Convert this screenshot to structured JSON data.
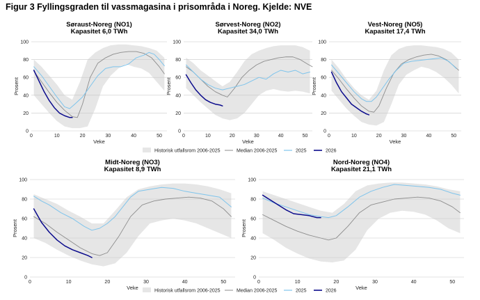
{
  "figure_title": "Figur 3 Fyllingsgraden til vassmagasina i prisområda i Noreg. Kjelde: NVE",
  "colors": {
    "band": "#e6e6e6",
    "median": "#8c8c8c",
    "y2025": "#7ec4ec",
    "y2026": "#0a0a8c",
    "grid": "#c8c8c8"
  },
  "legend": {
    "band": "Historisk utfallsrom 2006-2025",
    "median": "Median 2006-2025",
    "y2025": "2025",
    "y2026": "2026"
  },
  "chart_data": [
    {
      "type": "line",
      "title": "Søraust-Noreg (NO1)",
      "subtitle": "Kapasitet 6,0 TWh",
      "xlabel": "Veke",
      "ylabel": "Prosent",
      "xlim": [
        0,
        53
      ],
      "ylim": [
        0,
        100
      ],
      "xticks": [
        0,
        10,
        20,
        30,
        40,
        50
      ],
      "yticks": [
        0,
        20,
        40,
        60,
        80,
        100
      ],
      "grid": true,
      "band_weeks": [
        1,
        4,
        7,
        10,
        13,
        16,
        19,
        22,
        25,
        28,
        31,
        34,
        37,
        40,
        43,
        46,
        49,
        52
      ],
      "band_min": [
        40,
        30,
        20,
        11,
        5,
        3,
        3,
        5,
        25,
        50,
        62,
        70,
        75,
        72,
        70,
        65,
        55,
        45
      ],
      "band_max": [
        80,
        72,
        62,
        52,
        40,
        35,
        55,
        80,
        88,
        93,
        96,
        97,
        97,
        96,
        95,
        93,
        90,
        82
      ],
      "median": {
        "weeks": [
          1,
          4,
          7,
          10,
          13,
          16,
          18,
          20,
          23,
          26,
          29,
          32,
          35,
          38,
          41,
          44,
          47,
          50,
          52
        ],
        "values": [
          67,
          55,
          43,
          32,
          23,
          16,
          15,
          30,
          60,
          76,
          82,
          86,
          88,
          89,
          89,
          87,
          82,
          72,
          64
        ]
      },
      "series": [
        {
          "name": "2025",
          "weeks": [
            1,
            4,
            7,
            10,
            13,
            15,
            17,
            20,
            23,
            26,
            29,
            32,
            35,
            38,
            41,
            44,
            46,
            48,
            50,
            52
          ],
          "values": [
            72,
            62,
            50,
            38,
            27,
            25,
            30,
            38,
            50,
            62,
            70,
            72,
            72,
            75,
            82,
            85,
            88,
            86,
            80,
            73
          ]
        },
        {
          "name": "2026",
          "weeks": [
            1,
            3,
            5,
            7,
            9,
            11,
            13,
            15,
            16
          ],
          "values": [
            68,
            56,
            44,
            34,
            26,
            20,
            17,
            15,
            15
          ]
        }
      ]
    },
    {
      "type": "line",
      "title": "Sørvest-Noreg (NO2)",
      "subtitle": "Kapasitet 34,0 TWh",
      "xlabel": "Veke",
      "ylabel": "Prosent",
      "xlim": [
        0,
        53
      ],
      "ylim": [
        0,
        100
      ],
      "xticks": [
        0,
        10,
        20,
        30,
        40,
        50
      ],
      "yticks": [
        0,
        20,
        40,
        60,
        80,
        100
      ],
      "grid": true,
      "band_weeks": [
        1,
        4,
        7,
        10,
        13,
        16,
        19,
        22,
        25,
        28,
        31,
        34,
        37,
        40,
        43,
        46,
        49,
        52
      ],
      "band_min": [
        48,
        40,
        32,
        25,
        18,
        14,
        12,
        14,
        20,
        30,
        40,
        45,
        47,
        45,
        44,
        45,
        44,
        42
      ],
      "band_max": [
        82,
        76,
        68,
        62,
        56,
        50,
        55,
        66,
        78,
        86,
        90,
        93,
        95,
        96,
        96,
        96,
        94,
        90
      ],
      "median": {
        "weeks": [
          1,
          4,
          7,
          10,
          13,
          16,
          18,
          21,
          24,
          27,
          30,
          33,
          36,
          39,
          42,
          45,
          48,
          51,
          53
        ],
        "values": [
          72,
          66,
          58,
          50,
          44,
          40,
          38,
          48,
          60,
          68,
          74,
          78,
          80,
          82,
          83,
          83,
          80,
          75,
          72
        ]
      },
      "series": [
        {
          "name": "2025",
          "weeks": [
            1,
            4,
            7,
            10,
            13,
            16,
            19,
            22,
            25,
            28,
            31,
            34,
            37,
            40,
            43,
            46,
            49,
            52
          ],
          "values": [
            74,
            66,
            58,
            52,
            48,
            46,
            48,
            50,
            52,
            56,
            60,
            58,
            64,
            68,
            66,
            68,
            64,
            66
          ]
        },
        {
          "name": "2026",
          "weeks": [
            1,
            3,
            5,
            7,
            9,
            11,
            13,
            15,
            16
          ],
          "values": [
            63,
            54,
            46,
            40,
            35,
            32,
            30,
            29,
            28
          ]
        }
      ]
    },
    {
      "type": "line",
      "title": "Vest-Noreg (NO5)",
      "subtitle": "Kapasitet 17,4 TWh",
      "xlabel": "Veke",
      "ylabel": "Prosent",
      "xlim": [
        0,
        53
      ],
      "ylim": [
        0,
        100
      ],
      "xticks": [
        0,
        10,
        20,
        30,
        40,
        50
      ],
      "yticks": [
        0,
        20,
        40,
        60,
        80,
        100
      ],
      "grid": true,
      "band_weeks": [
        1,
        4,
        7,
        10,
        13,
        16,
        19,
        22,
        25,
        28,
        31,
        34,
        37,
        40,
        43,
        46,
        49,
        52
      ],
      "band_min": [
        45,
        35,
        25,
        17,
        10,
        7,
        6,
        10,
        30,
        52,
        63,
        68,
        72,
        70,
        66,
        60,
        52,
        42
      ],
      "band_max": [
        80,
        70,
        58,
        48,
        40,
        35,
        45,
        68,
        85,
        92,
        95,
        96,
        96,
        95,
        94,
        92,
        88,
        80
      ],
      "median": {
        "weeks": [
          1,
          4,
          7,
          10,
          13,
          16,
          18,
          20,
          23,
          26,
          29,
          32,
          35,
          38,
          41,
          44,
          47,
          50,
          52
        ],
        "values": [
          68,
          58,
          47,
          37,
          28,
          22,
          21,
          28,
          48,
          65,
          75,
          80,
          83,
          85,
          86,
          84,
          80,
          73,
          68
        ]
      },
      "series": [
        {
          "name": "2025",
          "weeks": [
            1,
            4,
            7,
            10,
            13,
            15,
            17,
            19,
            21,
            24,
            27,
            30,
            33,
            36,
            39,
            42,
            45,
            48,
            51
          ],
          "values": [
            74,
            64,
            54,
            44,
            36,
            33,
            33,
            38,
            46,
            58,
            68,
            76,
            78,
            79,
            80,
            81,
            82,
            78,
            70
          ]
        },
        {
          "name": "2026",
          "weeks": [
            1,
            3,
            5,
            7,
            9,
            11,
            13,
            15,
            16
          ],
          "values": [
            66,
            54,
            44,
            37,
            30,
            26,
            22,
            19,
            18
          ]
        }
      ]
    },
    {
      "type": "line",
      "title": "Midt-Noreg (NO3)",
      "subtitle": "Kapasitet 8,9 TWh",
      "xlabel": "Veke",
      "ylabel": "Prosent",
      "xlim": [
        0,
        53
      ],
      "ylim": [
        0,
        100
      ],
      "xticks": [
        0,
        10,
        20,
        30,
        40,
        50
      ],
      "yticks": [
        0,
        20,
        40,
        60,
        80,
        100
      ],
      "grid": true,
      "band_weeks": [
        1,
        4,
        7,
        10,
        13,
        16,
        19,
        22,
        25,
        28,
        31,
        34,
        37,
        40,
        43,
        46,
        49,
        52
      ],
      "band_min": [
        40,
        35,
        28,
        22,
        17,
        13,
        11,
        14,
        25,
        42,
        55,
        58,
        60,
        58,
        55,
        50,
        45,
        40
      ],
      "band_max": [
        85,
        80,
        75,
        68,
        62,
        55,
        55,
        68,
        82,
        90,
        93,
        95,
        96,
        96,
        95,
        93,
        90,
        86
      ],
      "median": {
        "weeks": [
          1,
          4,
          7,
          10,
          13,
          16,
          18,
          20,
          23,
          26,
          29,
          32,
          35,
          38,
          41,
          44,
          47,
          50,
          52
        ],
        "values": [
          62,
          55,
          46,
          38,
          30,
          24,
          22,
          25,
          42,
          62,
          74,
          78,
          80,
          81,
          82,
          81,
          78,
          70,
          62
        ]
      },
      "series": [
        {
          "name": "2025",
          "weeks": [
            1,
            3,
            5,
            8,
            11,
            14,
            16,
            18,
            20,
            22,
            24,
            26,
            28,
            31,
            34,
            37,
            40,
            43,
            46,
            49,
            52
          ],
          "values": [
            83,
            78,
            74,
            66,
            60,
            52,
            48,
            50,
            55,
            62,
            72,
            82,
            88,
            90,
            92,
            91,
            88,
            86,
            84,
            82,
            72
          ]
        },
        {
          "name": "2026",
          "weeks": [
            1,
            3,
            5,
            7,
            9,
            11,
            13,
            15,
            16
          ],
          "values": [
            70,
            56,
            46,
            38,
            32,
            28,
            25,
            22,
            20
          ]
        }
      ]
    },
    {
      "type": "line",
      "title": "Nord-Noreg (NO4)",
      "subtitle": "Kapasitet 21,1 TWh",
      "xlabel": "Veke",
      "ylabel": "Prosent",
      "xlim": [
        0,
        53
      ],
      "ylim": [
        0,
        100
      ],
      "xticks": [
        0,
        10,
        20,
        30,
        40,
        50
      ],
      "yticks": [
        0,
        20,
        40,
        60,
        80,
        100
      ],
      "grid": true,
      "band_weeks": [
        1,
        4,
        7,
        10,
        13,
        16,
        19,
        22,
        25,
        28,
        31,
        34,
        37,
        40,
        43,
        46,
        49,
        52
      ],
      "band_min": [
        45,
        38,
        30,
        24,
        19,
        16,
        15,
        17,
        28,
        48,
        60,
        66,
        68,
        67,
        64,
        58,
        50,
        45
      ],
      "band_max": [
        88,
        84,
        80,
        76,
        72,
        68,
        66,
        75,
        88,
        94,
        96,
        97,
        97,
        96,
        95,
        93,
        90,
        88
      ],
      "median": {
        "weeks": [
          1,
          4,
          7,
          10,
          13,
          16,
          18,
          20,
          23,
          26,
          29,
          32,
          35,
          38,
          41,
          44,
          47,
          50,
          52
        ],
        "values": [
          64,
          58,
          52,
          47,
          43,
          40,
          38,
          40,
          52,
          66,
          74,
          77,
          80,
          81,
          82,
          81,
          78,
          72,
          66
        ]
      },
      "series": [
        {
          "name": "2025",
          "weeks": [
            1,
            4,
            7,
            10,
            13,
            16,
            18,
            20,
            23,
            26,
            29,
            32,
            35,
            38,
            41,
            44,
            47,
            50,
            52
          ],
          "values": [
            81,
            76,
            72,
            68,
            64,
            62,
            61,
            63,
            72,
            82,
            88,
            92,
            95,
            94,
            93,
            92,
            90,
            86,
            84
          ]
        },
        {
          "name": "2026",
          "weeks": [
            1,
            3,
            5,
            7,
            9,
            11,
            13,
            15,
            16
          ],
          "values": [
            84,
            79,
            74,
            69,
            65,
            64,
            63,
            61,
            61
          ]
        }
      ]
    }
  ]
}
